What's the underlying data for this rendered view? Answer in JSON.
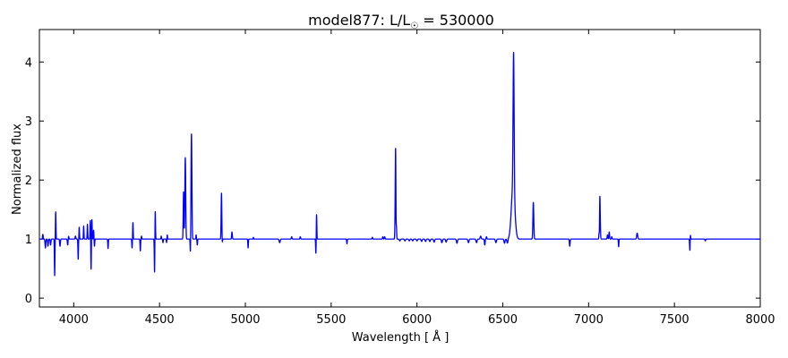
{
  "chart_data": {
    "type": "line",
    "title_main": "model877: L/L",
    "title_sub": "☉",
    "title_value": " = 530000",
    "xlabel": "Wavelength [ Å ]",
    "ylabel": "Normalized flux",
    "xlim": [
      3800,
      8000
    ],
    "ylim": [
      -0.15,
      4.55
    ],
    "x_ticks": [
      4000,
      4500,
      5000,
      5500,
      6000,
      6500,
      7000,
      7500,
      8000
    ],
    "y_ticks": [
      0,
      1,
      2,
      3,
      4
    ],
    "grid": false,
    "line_color": "#0000ff",
    "continuum": 1.0,
    "features": [
      {
        "center": 3820,
        "height": 0.08,
        "width": 2
      },
      {
        "center": 3835,
        "height": -0.15,
        "width": 2
      },
      {
        "center": 3850,
        "height": -0.12,
        "width": 2
      },
      {
        "center": 3865,
        "height": -0.1,
        "width": 2
      },
      {
        "center": 3889,
        "height": -0.62,
        "width": 1.5
      },
      {
        "center": 3895,
        "height": 0.46,
        "width": 1.5
      },
      {
        "center": 3920,
        "height": -0.12,
        "width": 2
      },
      {
        "center": 3965,
        "height": -0.1,
        "width": 2
      },
      {
        "center": 3970,
        "height": 0.05,
        "width": 2
      },
      {
        "center": 4010,
        "height": 0.05,
        "width": 2
      },
      {
        "center": 4026,
        "height": -0.34,
        "width": 1.5
      },
      {
        "center": 4032,
        "height": 0.2,
        "width": 1.5
      },
      {
        "center": 4058,
        "height": 0.22,
        "width": 1.5
      },
      {
        "center": 4080,
        "height": 0.25,
        "width": 1.5
      },
      {
        "center": 4097,
        "height": 0.33,
        "width": 1.5
      },
      {
        "center": 4101,
        "height": -0.52,
        "width": 1.5
      },
      {
        "center": 4106,
        "height": 0.33,
        "width": 1.5
      },
      {
        "center": 4116,
        "height": 0.15,
        "width": 1.5
      },
      {
        "center": 4121,
        "height": -0.12,
        "width": 1.5
      },
      {
        "center": 4200,
        "height": -0.16,
        "width": 1.5
      },
      {
        "center": 4340,
        "height": -0.15,
        "width": 1.5
      },
      {
        "center": 4345,
        "height": 0.28,
        "width": 1.5
      },
      {
        "center": 4388,
        "height": -0.2,
        "width": 1.5
      },
      {
        "center": 4395,
        "height": 0.05,
        "width": 1.5
      },
      {
        "center": 4471,
        "height": -0.57,
        "width": 1.5
      },
      {
        "center": 4475,
        "height": 0.48,
        "width": 1.5
      },
      {
        "center": 4510,
        "height": 0.05,
        "width": 1.5
      },
      {
        "center": 4520,
        "height": -0.06,
        "width": 1.5
      },
      {
        "center": 4541,
        "height": -0.06,
        "width": 1.5
      },
      {
        "center": 4545,
        "height": 0.07,
        "width": 1.5
      },
      {
        "center": 4640,
        "height": 0.8,
        "width": 2
      },
      {
        "center": 4650,
        "height": 1.38,
        "width": 2.5
      },
      {
        "center": 4680,
        "height": -0.28,
        "width": 1.5
      },
      {
        "center": 4686,
        "height": 1.78,
        "width": 2.5
      },
      {
        "center": 4713,
        "height": 0.07,
        "width": 1.5
      },
      {
        "center": 4720,
        "height": -0.1,
        "width": 1.5
      },
      {
        "center": 4861,
        "height": 0.78,
        "width": 2
      },
      {
        "center": 4865,
        "height": -0.1,
        "width": 1.5
      },
      {
        "center": 4922,
        "height": 0.12,
        "width": 2
      },
      {
        "center": 5016,
        "height": -0.15,
        "width": 1.5
      },
      {
        "center": 5047,
        "height": 0.03,
        "width": 1.5
      },
      {
        "center": 5200,
        "height": -0.06,
        "width": 3
      },
      {
        "center": 5270,
        "height": 0.04,
        "width": 2
      },
      {
        "center": 5320,
        "height": 0.04,
        "width": 2
      },
      {
        "center": 5411,
        "height": -0.25,
        "width": 1.5
      },
      {
        "center": 5415,
        "height": 0.42,
        "width": 1.5
      },
      {
        "center": 5592,
        "height": -0.08,
        "width": 1.5
      },
      {
        "center": 5740,
        "height": 0.03,
        "width": 2
      },
      {
        "center": 5801,
        "height": 0.04,
        "width": 2
      },
      {
        "center": 5812,
        "height": 0.04,
        "width": 2
      },
      {
        "center": 5876,
        "height": 1.69,
        "width": 2.5
      },
      {
        "center": 5878,
        "height": -0.77,
        "width": 1.3
      },
      {
        "center": 5900,
        "height": -0.03,
        "width": 3
      },
      {
        "center": 5930,
        "height": -0.03,
        "width": 3
      },
      {
        "center": 5955,
        "height": -0.03,
        "width": 3
      },
      {
        "center": 5975,
        "height": -0.03,
        "width": 3
      },
      {
        "center": 6000,
        "height": -0.03,
        "width": 3
      },
      {
        "center": 6027,
        "height": -0.04,
        "width": 3
      },
      {
        "center": 6050,
        "height": -0.04,
        "width": 3
      },
      {
        "center": 6075,
        "height": -0.04,
        "width": 3
      },
      {
        "center": 6100,
        "height": -0.05,
        "width": 3
      },
      {
        "center": 6145,
        "height": -0.06,
        "width": 3
      },
      {
        "center": 6170,
        "height": -0.05,
        "width": 3
      },
      {
        "center": 6233,
        "height": -0.07,
        "width": 3
      },
      {
        "center": 6300,
        "height": -0.06,
        "width": 3
      },
      {
        "center": 6347,
        "height": -0.06,
        "width": 3
      },
      {
        "center": 6371,
        "height": 0.05,
        "width": 3
      },
      {
        "center": 6395,
        "height": -0.1,
        "width": 2
      },
      {
        "center": 6405,
        "height": 0.04,
        "width": 2
      },
      {
        "center": 6460,
        "height": -0.06,
        "width": 3
      },
      {
        "center": 6510,
        "height": -0.07,
        "width": 3
      },
      {
        "center": 6527,
        "height": -0.07,
        "width": 3
      },
      {
        "center": 6560,
        "height": 0.9,
        "width": 10
      },
      {
        "center": 6563,
        "height": 2.3,
        "width": 3
      },
      {
        "center": 6678,
        "height": 0.62,
        "width": 2.5
      },
      {
        "center": 6890,
        "height": -0.12,
        "width": 2
      },
      {
        "center": 7065,
        "height": 0.8,
        "width": 2.5
      },
      {
        "center": 7063,
        "height": -0.38,
        "width": 1.3
      },
      {
        "center": 7110,
        "height": 0.07,
        "width": 2
      },
      {
        "center": 7120,
        "height": 0.12,
        "width": 2
      },
      {
        "center": 7135,
        "height": 0.04,
        "width": 2
      },
      {
        "center": 7175,
        "height": -0.13,
        "width": 1.5
      },
      {
        "center": 7283,
        "height": 0.1,
        "width": 3
      },
      {
        "center": 7590,
        "height": -0.2,
        "width": 1.5
      },
      {
        "center": 7593,
        "height": 0.08,
        "width": 1.5
      },
      {
        "center": 7680,
        "height": -0.03,
        "width": 2
      }
    ]
  }
}
